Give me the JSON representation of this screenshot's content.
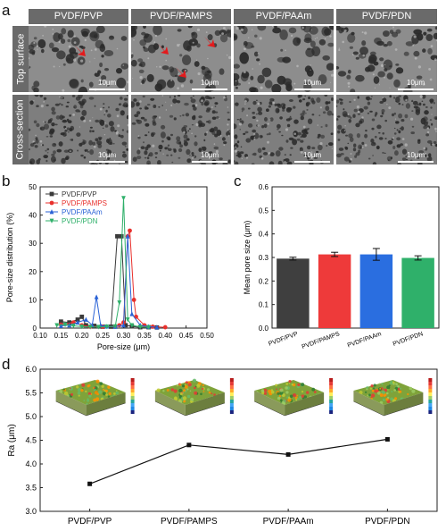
{
  "panel_a": {
    "letter": "a",
    "columns": [
      "PVDF/PVP",
      "PVDF/PAMPS",
      "PVDF/PAAm",
      "PVDF/PDN"
    ],
    "rows": [
      "Top surface",
      "Cross-section"
    ],
    "scale_bar": "10μm"
  },
  "panel_b": {
    "letter": "b"
  },
  "panel_c": {
    "letter": "c"
  },
  "panel_d": {
    "letter": "d"
  },
  "chart_data": [
    {
      "id": "b",
      "type": "line",
      "xlabel": "Pore-size (μm)",
      "ylabel": "Pore-size distribution (%)",
      "xlim": [
        0.1,
        0.5
      ],
      "ylim": [
        0,
        50
      ],
      "xticks": [
        "0.10",
        "0.15",
        "0.20",
        "0.25",
        "0.30",
        "0.35",
        "0.40",
        "0.45",
        "0.50"
      ],
      "yticks": [
        "0",
        "10",
        "20",
        "30",
        "40",
        "50"
      ],
      "legend_position": "top-left",
      "series": [
        {
          "name": "PVDF/PVP",
          "color": "#3a3a3a",
          "marker": "square",
          "points": [
            [
              0.15,
              2.3
            ],
            [
              0.17,
              2.0
            ],
            [
              0.19,
              3.0
            ],
            [
              0.2,
              4.0
            ],
            [
              0.21,
              1.0
            ],
            [
              0.23,
              0.8
            ],
            [
              0.25,
              0.5
            ],
            [
              0.27,
              0.5
            ],
            [
              0.285,
              32.5
            ],
            [
              0.295,
              32.5
            ],
            [
              0.305,
              1.0
            ],
            [
              0.32,
              0.6
            ],
            [
              0.34,
              0.3
            ],
            [
              0.36,
              0.3
            ],
            [
              0.38,
              0.2
            ]
          ]
        },
        {
          "name": "PVDF/PAMPS",
          "color": "#e8302c",
          "marker": "circle",
          "points": [
            [
              0.15,
              1.2
            ],
            [
              0.18,
              2.0
            ],
            [
              0.2,
              1.0
            ],
            [
              0.22,
              0.5
            ],
            [
              0.25,
              0.5
            ],
            [
              0.28,
              0.5
            ],
            [
              0.29,
              1.0
            ],
            [
              0.3,
              2.0
            ],
            [
              0.31,
              32.5
            ],
            [
              0.315,
              34.5
            ],
            [
              0.325,
              10.0
            ],
            [
              0.33,
              4.0
            ],
            [
              0.35,
              1.0
            ],
            [
              0.37,
              0.5
            ],
            [
              0.4,
              0.3
            ]
          ]
        },
        {
          "name": "PVDF/PAAm",
          "color": "#2a62d6",
          "marker": "triangle",
          "points": [
            [
              0.15,
              0.8
            ],
            [
              0.17,
              1.0
            ],
            [
              0.19,
              2.0
            ],
            [
              0.21,
              3.0
            ],
            [
              0.225,
              1.0
            ],
            [
              0.235,
              11.0
            ],
            [
              0.245,
              1.0
            ],
            [
              0.26,
              0.6
            ],
            [
              0.28,
              0.5
            ],
            [
              0.3,
              1.0
            ],
            [
              0.31,
              32.5
            ],
            [
              0.32,
              5.0
            ],
            [
              0.34,
              1.0
            ],
            [
              0.36,
              0.5
            ],
            [
              0.38,
              0.3
            ]
          ]
        },
        {
          "name": "PVDF/PDN",
          "color": "#2fb06a",
          "marker": "triangle-down",
          "points": [
            [
              0.14,
              1.0
            ],
            [
              0.16,
              1.2
            ],
            [
              0.18,
              0.8
            ],
            [
              0.2,
              0.5
            ],
            [
              0.22,
              0.4
            ],
            [
              0.24,
              0.4
            ],
            [
              0.26,
              0.5
            ],
            [
              0.28,
              0.6
            ],
            [
              0.29,
              9.0
            ],
            [
              0.3,
              46.0
            ],
            [
              0.31,
              3.0
            ],
            [
              0.32,
              1.0
            ],
            [
              0.34,
              0.4
            ],
            [
              0.36,
              0.3
            ]
          ]
        }
      ]
    },
    {
      "id": "c",
      "type": "bar",
      "ylabel": "Mean pore size (μm)",
      "ylim": [
        0.0,
        0.6
      ],
      "yticks": [
        "0.0",
        "0.1",
        "0.2",
        "0.3",
        "0.4",
        "0.5",
        "0.6"
      ],
      "categories": [
        "PVDF/PVP",
        "PVDF/PAMPS",
        "PVDF/PAAm",
        "PVDF/PDN"
      ],
      "values": [
        0.295,
        0.313,
        0.313,
        0.298
      ],
      "errors": [
        0.006,
        0.009,
        0.025,
        0.009
      ],
      "colors": [
        "#3f3f3f",
        "#ee3a3a",
        "#2a6ee0",
        "#2fb06a"
      ]
    },
    {
      "id": "d",
      "type": "line",
      "ylabel": "Ra (μm)",
      "ylim": [
        3.0,
        6.0
      ],
      "yticks": [
        "3.0",
        "3.5",
        "4.0",
        "4.5",
        "5.0",
        "5.5",
        "6.0"
      ],
      "categories": [
        "PVDF/PVP",
        "PVDF/PAMPS",
        "PVDF/PAAm",
        "PVDF/PDN"
      ],
      "values": [
        3.58,
        4.4,
        4.2,
        4.52
      ],
      "color": "#111111",
      "insets": [
        "3D surface roughness map",
        "3D surface roughness map",
        "3D surface roughness map",
        "3D surface roughness map"
      ]
    }
  ]
}
